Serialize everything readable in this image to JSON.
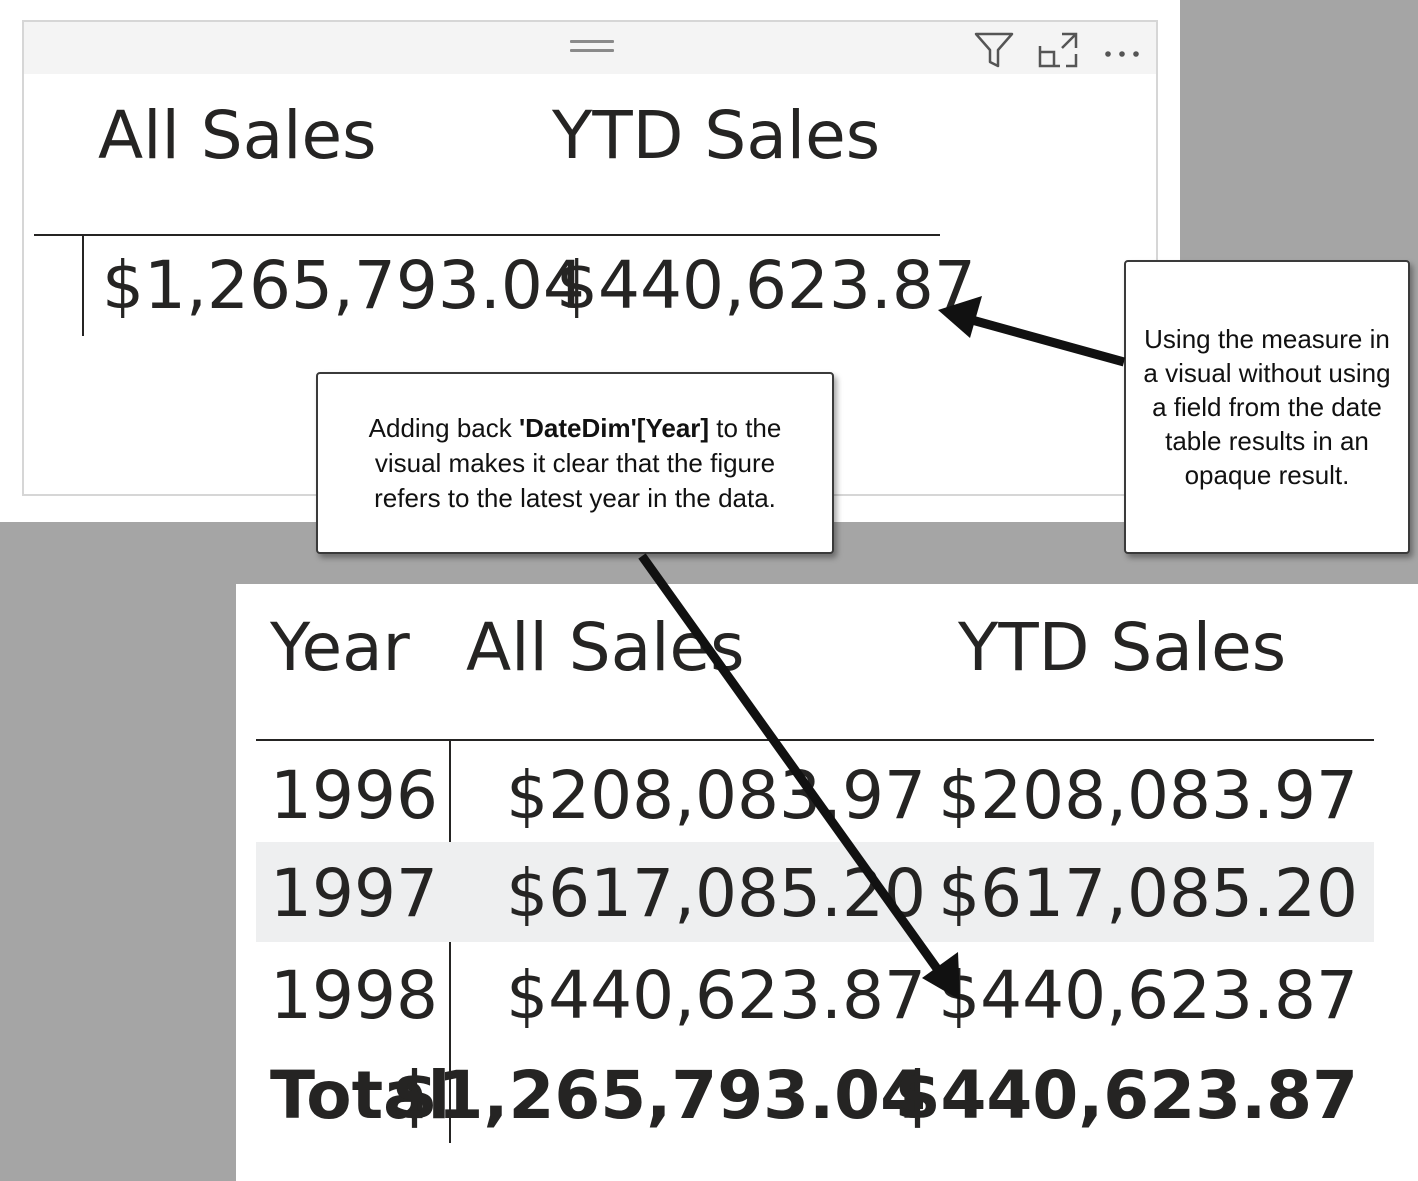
{
  "top_visual": {
    "header_icons": [
      "drag-handle-icon",
      "filter-icon",
      "focus-mode-icon",
      "more-options-icon"
    ],
    "columns": [
      "All Sales",
      "YTD Sales"
    ],
    "values": [
      "$1,265,793.04",
      "$440,623.87"
    ]
  },
  "callouts": {
    "right_text": "Using the measure in a visual without using a field from the date table results in an opaque result.",
    "mid_text_before": "Adding back ",
    "mid_text_bold": "'DateDim'[Year]",
    "mid_text_after": " to the visual makes it clear that the figure refers to the latest year in the data."
  },
  "bottom_table": {
    "columns": [
      "Year",
      "All Sales",
      "YTD Sales"
    ],
    "rows": [
      {
        "year": "1996",
        "all_sales": "$208,083.97",
        "ytd_sales": "$208,083.97"
      },
      {
        "year": "1997",
        "all_sales": "$617,085.20",
        "ytd_sales": "$617,085.20"
      },
      {
        "year": "1998",
        "all_sales": "$440,623.87",
        "ytd_sales": "$440,623.87"
      }
    ],
    "total": {
      "label": "Total",
      "all_sales": "$1,265,793.04",
      "ytd_sales": "$440,623.87"
    }
  },
  "colors": {
    "background": "#a5a5a5",
    "text": "#252423",
    "banded_row": "#eeeff0",
    "arrow": "#111111"
  }
}
